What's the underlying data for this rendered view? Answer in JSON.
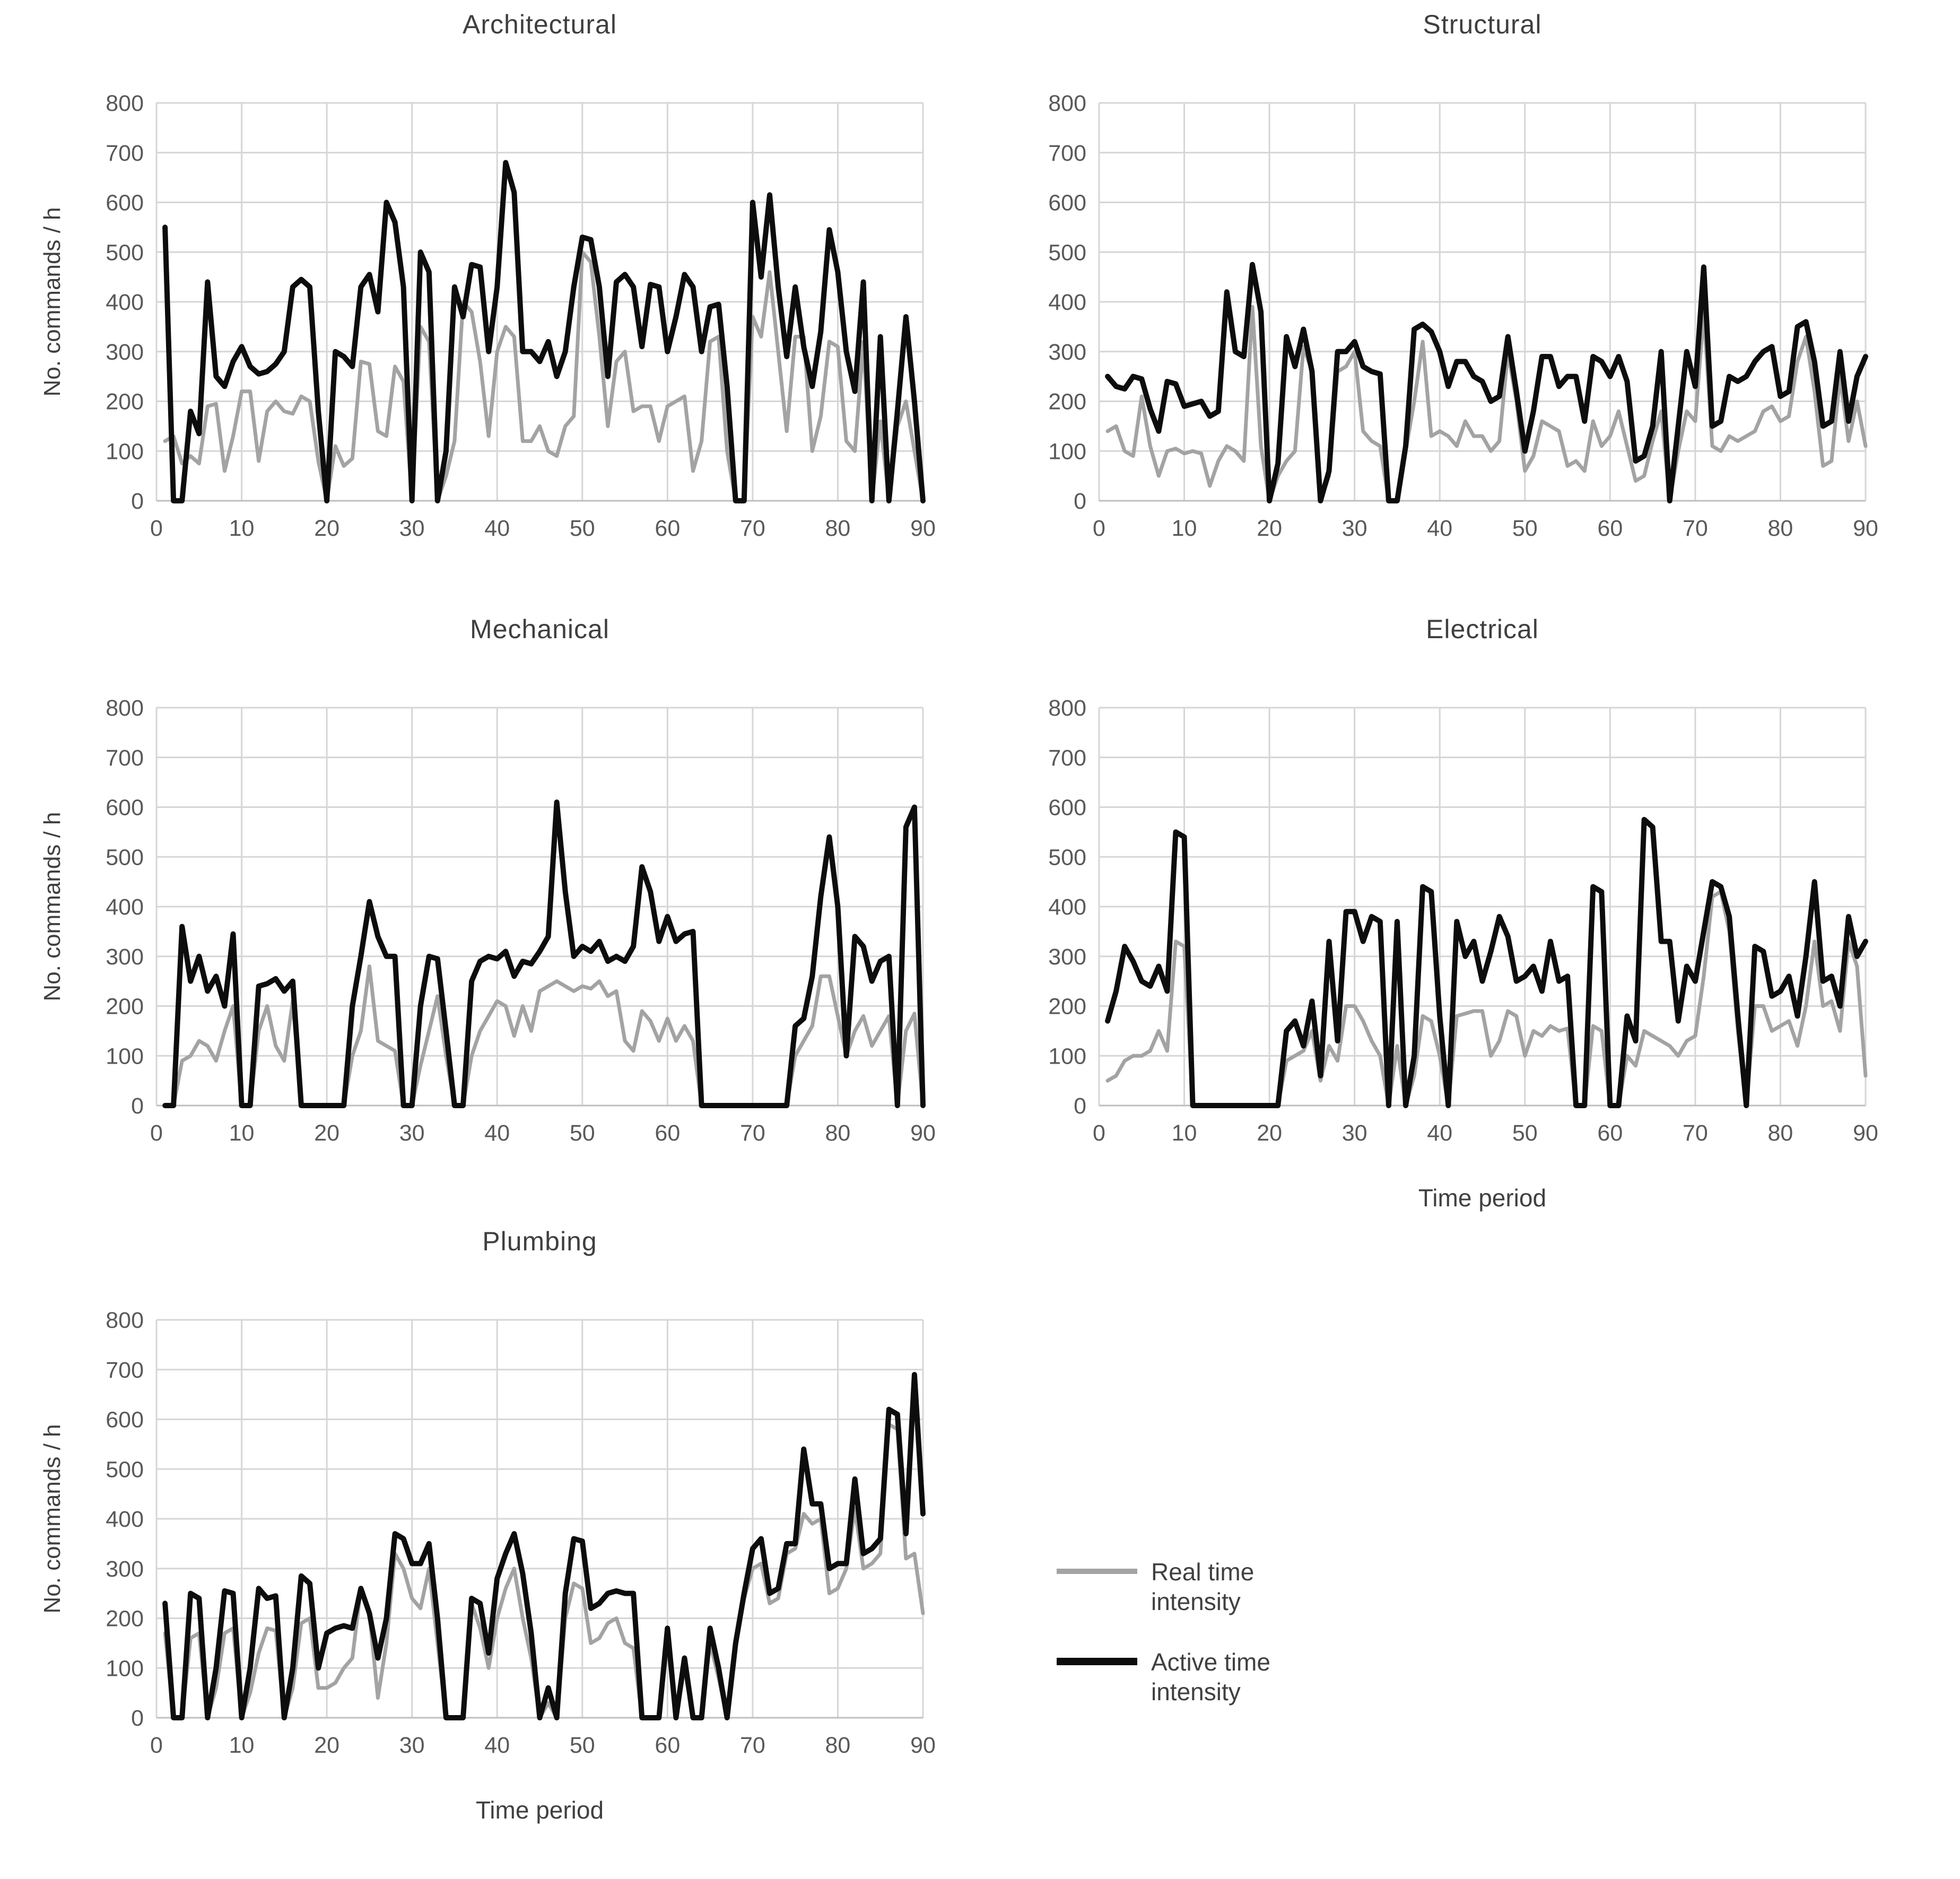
{
  "colors": {
    "real": "#a3a3a3",
    "active": "#0d0d0d",
    "grid": "#d6d6d6",
    "axis_line": "#bfbfbf",
    "tick_text": "#595959",
    "title_text": "#404040",
    "background": "#ffffff"
  },
  "axes": {
    "y_title": "No. commands / h",
    "x_title": "Time period",
    "xlim": [
      0,
      90
    ],
    "ylim": [
      0,
      800
    ],
    "x_ticks": [
      0,
      10,
      20,
      30,
      40,
      50,
      60,
      70,
      80,
      90
    ],
    "y_ticks": [
      0,
      100,
      200,
      300,
      400,
      500,
      600,
      700,
      800
    ],
    "grid": true
  },
  "legend": {
    "items": [
      {
        "key": "real",
        "label": "Real time intensity"
      },
      {
        "key": "active",
        "label": "Active time intensity"
      }
    ]
  },
  "chart_data": [
    {
      "type": "line",
      "title": "Architectural",
      "x_start": 1,
      "x_step": 1,
      "y_axis_title_shown": true,
      "x_axis_title_shown": false,
      "series": [
        {
          "name": "Real time intensity",
          "key": "real",
          "values": [
            120,
            130,
            75,
            90,
            75,
            190,
            195,
            60,
            130,
            220,
            220,
            80,
            180,
            200,
            180,
            175,
            210,
            200,
            80,
            0,
            110,
            70,
            85,
            280,
            275,
            140,
            130,
            270,
            240,
            0,
            350,
            320,
            0,
            50,
            120,
            400,
            380,
            280,
            130,
            300,
            350,
            330,
            120,
            120,
            150,
            100,
            90,
            150,
            170,
            500,
            480,
            330,
            150,
            280,
            300,
            180,
            190,
            190,
            120,
            190,
            200,
            210,
            60,
            120,
            320,
            330,
            100,
            0,
            0,
            370,
            330,
            460,
            300,
            140,
            330,
            330,
            100,
            170,
            320,
            310,
            120,
            100,
            320,
            0,
            160,
            0,
            150,
            200,
            100,
            0
          ]
        },
        {
          "name": "Active time intensity",
          "key": "active",
          "values": [
            550,
            0,
            0,
            180,
            135,
            440,
            250,
            230,
            280,
            310,
            270,
            255,
            260,
            275,
            300,
            430,
            445,
            430,
            180,
            0,
            300,
            290,
            270,
            430,
            455,
            380,
            600,
            560,
            430,
            0,
            500,
            460,
            0,
            100,
            430,
            370,
            475,
            470,
            300,
            430,
            680,
            620,
            300,
            300,
            280,
            320,
            250,
            300,
            430,
            530,
            525,
            430,
            250,
            440,
            455,
            430,
            310,
            435,
            430,
            300,
            370,
            455,
            430,
            300,
            390,
            395,
            230,
            0,
            0,
            600,
            450,
            615,
            430,
            290,
            430,
            310,
            230,
            340,
            545,
            460,
            300,
            220,
            440,
            0,
            330,
            0,
            180,
            370,
            200,
            0
          ]
        }
      ]
    },
    {
      "type": "line",
      "title": "Structural",
      "x_start": 1,
      "x_step": 1,
      "y_axis_title_shown": false,
      "x_axis_title_shown": false,
      "series": [
        {
          "name": "Real time intensity",
          "key": "real",
          "values": [
            140,
            150,
            100,
            90,
            210,
            110,
            50,
            100,
            105,
            95,
            100,
            95,
            30,
            80,
            110,
            100,
            80,
            390,
            110,
            0,
            50,
            80,
            100,
            310,
            260,
            0,
            50,
            260,
            270,
            300,
            140,
            120,
            110,
            0,
            0,
            100,
            200,
            320,
            130,
            140,
            130,
            110,
            160,
            130,
            130,
            100,
            120,
            300,
            200,
            60,
            90,
            160,
            150,
            140,
            70,
            80,
            60,
            160,
            110,
            130,
            180,
            110,
            40,
            50,
            120,
            180,
            0,
            100,
            180,
            160,
            380,
            110,
            100,
            130,
            120,
            130,
            140,
            180,
            190,
            160,
            170,
            280,
            330,
            220,
            70,
            80,
            250,
            120,
            200,
            110
          ]
        },
        {
          "name": "Active time intensity",
          "key": "active",
          "values": [
            250,
            230,
            225,
            250,
            245,
            185,
            140,
            240,
            235,
            190,
            195,
            200,
            170,
            180,
            420,
            300,
            290,
            475,
            380,
            0,
            75,
            330,
            270,
            345,
            260,
            0,
            60,
            300,
            300,
            320,
            270,
            260,
            255,
            0,
            0,
            110,
            345,
            355,
            340,
            300,
            230,
            280,
            280,
            250,
            240,
            200,
            210,
            330,
            220,
            100,
            180,
            290,
            290,
            230,
            250,
            250,
            160,
            290,
            280,
            250,
            290,
            240,
            80,
            90,
            150,
            300,
            0,
            150,
            300,
            230,
            470,
            150,
            160,
            250,
            240,
            250,
            280,
            300,
            310,
            210,
            220,
            350,
            360,
            280,
            150,
            160,
            300,
            160,
            250,
            290
          ]
        }
      ]
    },
    {
      "type": "line",
      "title": "Mechanical",
      "x_start": 1,
      "x_step": 1,
      "y_axis_title_shown": true,
      "x_axis_title_shown": false,
      "series": [
        {
          "name": "Real time intensity",
          "key": "real",
          "values": [
            0,
            0,
            90,
            100,
            130,
            120,
            90,
            150,
            200,
            0,
            0,
            150,
            200,
            120,
            90,
            210,
            0,
            0,
            0,
            0,
            0,
            0,
            100,
            150,
            280,
            130,
            120,
            110,
            0,
            0,
            80,
            150,
            220,
            100,
            0,
            0,
            100,
            150,
            180,
            210,
            200,
            140,
            200,
            150,
            230,
            240,
            250,
            240,
            230,
            240,
            235,
            250,
            220,
            230,
            130,
            110,
            190,
            170,
            130,
            175,
            130,
            160,
            130,
            0,
            0,
            0,
            0,
            0,
            0,
            0,
            0,
            0,
            0,
            0,
            100,
            130,
            160,
            260,
            260,
            180,
            100,
            150,
            180,
            120,
            150,
            180,
            0,
            150,
            185,
            0
          ]
        },
        {
          "name": "Active time intensity",
          "key": "active",
          "values": [
            0,
            0,
            360,
            250,
            300,
            230,
            260,
            200,
            345,
            0,
            0,
            240,
            245,
            255,
            230,
            250,
            0,
            0,
            0,
            0,
            0,
            0,
            200,
            300,
            410,
            340,
            300,
            300,
            0,
            0,
            200,
            300,
            295,
            150,
            0,
            0,
            250,
            290,
            300,
            295,
            310,
            260,
            290,
            285,
            310,
            340,
            610,
            430,
            300,
            320,
            310,
            330,
            290,
            300,
            290,
            320,
            480,
            430,
            330,
            380,
            330,
            345,
            350,
            0,
            0,
            0,
            0,
            0,
            0,
            0,
            0,
            0,
            0,
            0,
            160,
            175,
            260,
            420,
            540,
            400,
            100,
            340,
            320,
            250,
            290,
            300,
            0,
            560,
            600,
            0
          ]
        }
      ]
    },
    {
      "type": "line",
      "title": "Electrical",
      "x_start": 1,
      "x_step": 1,
      "y_axis_title_shown": false,
      "x_axis_title_shown": true,
      "series": [
        {
          "name": "Real time intensity",
          "key": "real",
          "values": [
            50,
            60,
            90,
            100,
            100,
            110,
            150,
            110,
            330,
            320,
            0,
            0,
            0,
            0,
            0,
            0,
            0,
            0,
            0,
            0,
            0,
            90,
            100,
            110,
            150,
            50,
            120,
            90,
            200,
            200,
            170,
            130,
            100,
            0,
            120,
            0,
            60,
            180,
            170,
            100,
            0,
            180,
            185,
            190,
            190,
            100,
            130,
            190,
            180,
            100,
            150,
            140,
            160,
            150,
            155,
            0,
            0,
            160,
            150,
            0,
            0,
            100,
            80,
            150,
            140,
            130,
            120,
            100,
            130,
            140,
            260,
            420,
            430,
            350,
            150,
            0,
            200,
            200,
            150,
            160,
            170,
            120,
            200,
            330,
            200,
            210,
            150,
            330,
            280,
            60
          ]
        },
        {
          "name": "Active time intensity",
          "key": "active",
          "values": [
            170,
            230,
            320,
            290,
            250,
            240,
            280,
            230,
            550,
            540,
            0,
            0,
            0,
            0,
            0,
            0,
            0,
            0,
            0,
            0,
            0,
            150,
            170,
            120,
            210,
            60,
            330,
            130,
            390,
            390,
            330,
            380,
            370,
            0,
            370,
            0,
            100,
            440,
            430,
            180,
            0,
            370,
            300,
            330,
            250,
            310,
            380,
            340,
            250,
            260,
            280,
            230,
            330,
            250,
            260,
            0,
            0,
            440,
            430,
            0,
            0,
            180,
            130,
            575,
            560,
            330,
            330,
            170,
            280,
            250,
            350,
            450,
            440,
            380,
            180,
            0,
            320,
            310,
            220,
            230,
            260,
            180,
            300,
            450,
            250,
            260,
            200,
            380,
            300,
            330
          ]
        }
      ]
    },
    {
      "type": "line",
      "title": "Plumbing",
      "x_start": 1,
      "x_step": 1,
      "y_axis_title_shown": true,
      "x_axis_title_shown": true,
      "series": [
        {
          "name": "Real time intensity",
          "key": "real",
          "values": [
            170,
            0,
            0,
            160,
            170,
            0,
            60,
            170,
            180,
            0,
            50,
            130,
            180,
            175,
            0,
            60,
            190,
            200,
            60,
            60,
            70,
            100,
            120,
            260,
            210,
            40,
            150,
            330,
            300,
            240,
            220,
            300,
            150,
            0,
            0,
            0,
            230,
            180,
            100,
            200,
            260,
            300,
            200,
            120,
            0,
            30,
            0,
            200,
            270,
            260,
            150,
            160,
            190,
            200,
            150,
            140,
            0,
            0,
            0,
            150,
            0,
            100,
            0,
            0,
            150,
            80,
            0,
            140,
            240,
            300,
            310,
            230,
            240,
            330,
            340,
            410,
            390,
            400,
            250,
            260,
            300,
            420,
            300,
            310,
            330,
            590,
            580,
            320,
            330,
            210
          ]
        },
        {
          "name": "Active time intensity",
          "key": "active",
          "values": [
            230,
            0,
            0,
            250,
            240,
            0,
            100,
            255,
            250,
            0,
            100,
            260,
            240,
            245,
            0,
            100,
            285,
            270,
            100,
            170,
            180,
            185,
            180,
            260,
            210,
            120,
            200,
            370,
            360,
            310,
            310,
            350,
            200,
            0,
            0,
            0,
            240,
            230,
            130,
            280,
            330,
            370,
            290,
            170,
            0,
            60,
            0,
            250,
            360,
            355,
            220,
            230,
            250,
            255,
            250,
            250,
            0,
            0,
            0,
            180,
            0,
            120,
            0,
            0,
            180,
            100,
            0,
            150,
            250,
            340,
            360,
            250,
            260,
            350,
            350,
            540,
            430,
            430,
            300,
            310,
            310,
            480,
            330,
            340,
            360,
            620,
            610,
            370,
            690,
            410
          ]
        }
      ]
    }
  ]
}
